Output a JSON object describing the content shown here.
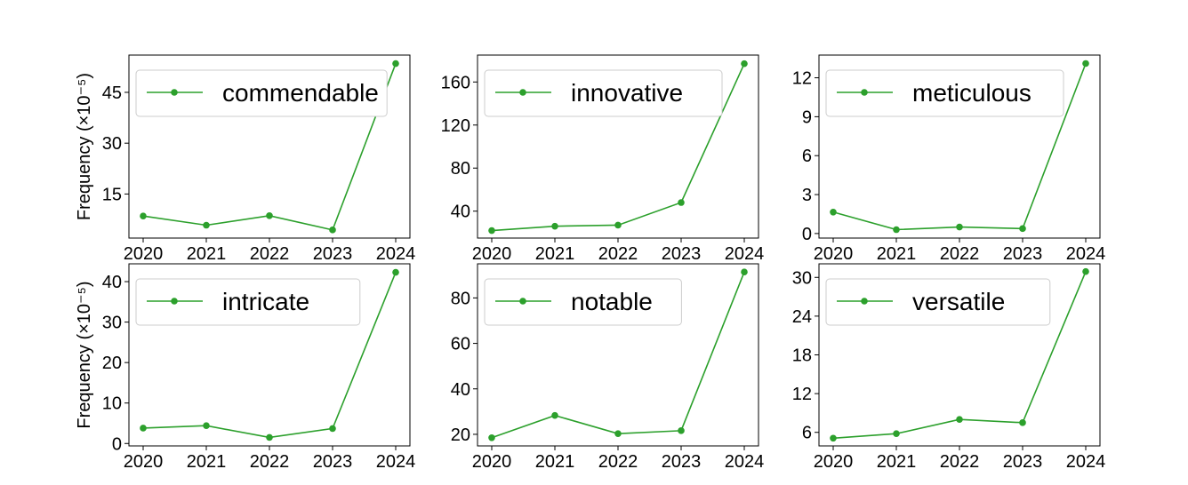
{
  "chart_data": [
    {
      "type": "line",
      "x": [
        2020,
        2021,
        2022,
        2023,
        2024
      ],
      "series": [
        {
          "name": "commendable",
          "values": [
            8.5,
            5.8,
            8.6,
            4.4,
            53.5
          ]
        }
      ],
      "ylabel": "Frequency (×10⁻⁵)",
      "yticks": [
        15,
        30,
        45
      ],
      "ylim": [
        2,
        56
      ],
      "legend": "upper-left",
      "color": "#2ca02c",
      "grid": false
    },
    {
      "type": "line",
      "x": [
        2020,
        2021,
        2022,
        2023,
        2024
      ],
      "series": [
        {
          "name": "innovative",
          "values": [
            22,
            26,
            27,
            48,
            177
          ]
        }
      ],
      "ylabel": "",
      "yticks": [
        40,
        80,
        120,
        160
      ],
      "ylim": [
        15,
        185
      ],
      "legend": "upper-left",
      "color": "#2ca02c",
      "grid": false
    },
    {
      "type": "line",
      "x": [
        2020,
        2021,
        2022,
        2023,
        2024
      ],
      "series": [
        {
          "name": "meticulous",
          "values": [
            1.65,
            0.3,
            0.5,
            0.38,
            13.1
          ]
        }
      ],
      "ylabel": "",
      "yticks": [
        0,
        3,
        6,
        9,
        12
      ],
      "ylim": [
        -0.35,
        13.75
      ],
      "legend": "upper-left",
      "color": "#2ca02c",
      "grid": false
    },
    {
      "type": "line",
      "x": [
        2020,
        2021,
        2022,
        2023,
        2024
      ],
      "series": [
        {
          "name": "intricate",
          "values": [
            3.8,
            4.4,
            1.5,
            3.7,
            42.3
          ]
        }
      ],
      "ylabel": "Frequency (×10⁻⁵)",
      "yticks": [
        0,
        10,
        20,
        30,
        40
      ],
      "ylim": [
        -0.6,
        44.4
      ],
      "legend": "upper-left",
      "color": "#2ca02c",
      "grid": false
    },
    {
      "type": "line",
      "x": [
        2020,
        2021,
        2022,
        2023,
        2024
      ],
      "series": [
        {
          "name": "notable",
          "values": [
            18.5,
            28.3,
            20.3,
            21.6,
            91.4
          ]
        }
      ],
      "ylabel": "",
      "yticks": [
        20,
        40,
        60,
        80
      ],
      "ylim": [
        14.9,
        95
      ],
      "legend": "upper-left",
      "color": "#2ca02c",
      "grid": false
    },
    {
      "type": "line",
      "x": [
        2020,
        2021,
        2022,
        2023,
        2024
      ],
      "series": [
        {
          "name": "versatile",
          "values": [
            5.1,
            5.8,
            8.0,
            7.5,
            30.9
          ]
        }
      ],
      "ylabel": "",
      "yticks": [
        6,
        12,
        18,
        24,
        30
      ],
      "ylim": [
        3.9,
        32.1
      ],
      "legend": "upper-left",
      "color": "#2ca02c",
      "grid": false
    }
  ]
}
